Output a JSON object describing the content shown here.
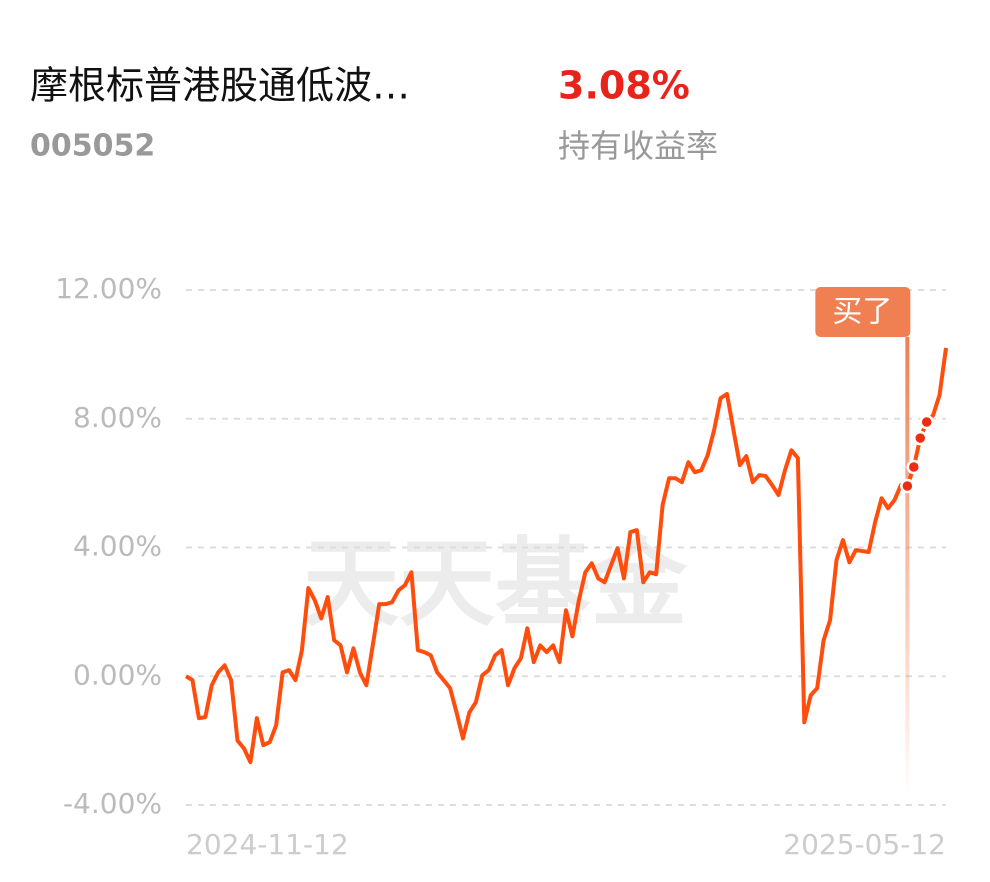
{
  "header": {
    "title": "摩根标普港股通低波…",
    "code": "005052",
    "return_value": "3.08%",
    "return_label": "持有收益率"
  },
  "chart_data": {
    "type": "line",
    "watermark": "天天基金",
    "categories": [
      "2024-11-12",
      null,
      null,
      null,
      null,
      null,
      null,
      null,
      null,
      null,
      null,
      null,
      null,
      null,
      null,
      null,
      null,
      null,
      null,
      null,
      null,
      null,
      null,
      null,
      null,
      null,
      null,
      null,
      null,
      null,
      null,
      null,
      null,
      null,
      null,
      null,
      null,
      null,
      null,
      null,
      null,
      null,
      null,
      null,
      null,
      null,
      null,
      null,
      null,
      null,
      null,
      null,
      null,
      null,
      null,
      null,
      null,
      null,
      null,
      null,
      null,
      null,
      null,
      null,
      null,
      null,
      null,
      null,
      null,
      null,
      null,
      null,
      null,
      null,
      null,
      null,
      null,
      null,
      null,
      null,
      null,
      null,
      null,
      null,
      null,
      null,
      null,
      null,
      null,
      null,
      null,
      null,
      null,
      null,
      null,
      null,
      null,
      null,
      null,
      null,
      null,
      null,
      null,
      null,
      null,
      null,
      null,
      null,
      null,
      null,
      null,
      null,
      null,
      null,
      null,
      null,
      null,
      null,
      "2025-05-12"
    ],
    "values": [
      0,
      -0.12,
      -1.3,
      -1.27,
      -0.28,
      0.12,
      0.34,
      -0.12,
      -2.0,
      -2.24,
      -2.67,
      -1.3,
      -2.14,
      -2.05,
      -1.52,
      0.12,
      0.19,
      -0.12,
      0.81,
      2.74,
      2.36,
      1.8,
      2.46,
      1.12,
      0.96,
      0.12,
      0.87,
      0.12,
      -0.28,
      0.96,
      2.24,
      2.24,
      2.3,
      2.67,
      2.83,
      3.23,
      0.81,
      0.75,
      0.65,
      0.12,
      -0.12,
      -0.37,
      -1.12,
      -1.93,
      -1.12,
      -0.81,
      0.03,
      0.19,
      0.65,
      0.81,
      -0.28,
      0.25,
      0.56,
      1.49,
      0.44,
      0.96,
      0.75,
      0.96,
      0.44,
      2.05,
      1.24,
      2.36,
      3.23,
      3.51,
      3.04,
      2.92,
      3.45,
      3.98,
      3.04,
      4.48,
      4.54,
      2.92,
      3.23,
      3.17,
      5.32,
      6.15,
      6.15,
      6.03,
      6.65,
      6.34,
      6.4,
      6.87,
      7.65,
      8.64,
      8.77,
      7.65,
      6.56,
      6.84,
      6.03,
      6.25,
      6.22,
      5.94,
      5.63,
      6.4,
      7.02,
      6.78,
      -1.43,
      -0.59,
      -0.37,
      1.12,
      1.74,
      3.61,
      4.23,
      3.54,
      3.92,
      3.89,
      3.86,
      4.79,
      5.53,
      5.22,
      5.47,
      5.94,
      5.91,
      6.5,
      7.4,
      7.9,
      8.11,
      8.74,
      10.2
    ],
    "color": "#ff4d0d",
    "ylim": [
      -4,
      12
    ],
    "yticks": [
      {
        "value": -4,
        "label": "-4.00%"
      },
      {
        "value": 0,
        "label": "0.00%"
      },
      {
        "value": 4,
        "label": "4.00%"
      },
      {
        "value": 8,
        "label": "8.00%"
      },
      {
        "value": 12,
        "label": "12.00%"
      }
    ],
    "grid": true,
    "buy_label": "买了",
    "buy_points": [
      112,
      113,
      114,
      115
    ],
    "buy_color": "#f07f52"
  }
}
